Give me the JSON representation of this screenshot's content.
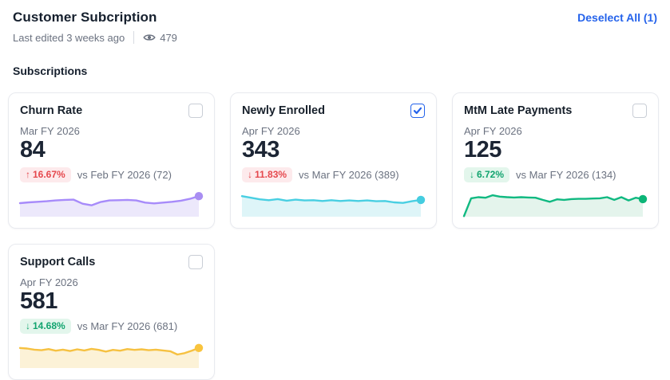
{
  "header": {
    "title": "Customer Subcription",
    "last_edited": "Last edited 3 weeks ago",
    "views_count": "479",
    "deselect_label": "Deselect All (1)"
  },
  "section": {
    "title": "Subscriptions"
  },
  "colors": {
    "link_blue": "#2563eb",
    "badge_negative_text": "#e5484d",
    "badge_negative_bg": "#fdeaec",
    "badge_positive_text": "#12a46f",
    "badge_positive_bg": "#e3f6ec",
    "text_muted": "#6b7280",
    "text_dark": "#1c2534",
    "card_border": "#e8eaef"
  },
  "cards": [
    {
      "title": "Churn Rate",
      "period": "Mar FY 2026",
      "value": "84",
      "checked": false,
      "delta": {
        "arrow": "↑",
        "text": "16.67%",
        "tone": "negative"
      },
      "comparison": "vs Feb FY 2026 (72)",
      "spark": {
        "color": "#a78bfa",
        "fill": "#ece8fb",
        "dot": "#a98ef2",
        "values": [
          50,
          53,
          55,
          57,
          60,
          62,
          63,
          48,
          42,
          54,
          60,
          61,
          62,
          60,
          52,
          49,
          52,
          55,
          59,
          66,
          76
        ]
      }
    },
    {
      "title": "Newly Enrolled",
      "period": "Apr FY 2026",
      "value": "343",
      "checked": true,
      "delta": {
        "arrow": "↓",
        "text": "11.83%",
        "tone": "negative"
      },
      "comparison": "vs Mar FY 2026 (389)",
      "spark": {
        "color": "#49cfe2",
        "fill": "#def5f8",
        "dot": "#45cde0",
        "values": [
          76,
          70,
          64,
          61,
          65,
          59,
          63,
          60,
          61,
          58,
          61,
          58,
          60,
          58,
          60,
          57,
          58,
          53,
          51,
          57,
          62
        ]
      }
    },
    {
      "title": "MtM Late Payments",
      "period": "Apr FY 2026",
      "value": "125",
      "checked": false,
      "delta": {
        "arrow": "↓",
        "text": "6.72%",
        "tone": "positive"
      },
      "comparison": "vs Mar FY 2026 (134)",
      "spark": {
        "color": "#10b981",
        "fill": "#e4f4ec",
        "dot": "#0cb577",
        "values": [
          2,
          68,
          72,
          70,
          79,
          74,
          72,
          71,
          72,
          71,
          70,
          62,
          55,
          64,
          62,
          65,
          66,
          66,
          67,
          68,
          72,
          62,
          72,
          60,
          70,
          65
        ]
      }
    },
    {
      "title": "Support Calls",
      "period": "Apr FY 2026",
      "value": "581",
      "checked": false,
      "delta": {
        "arrow": "↓",
        "text": "14.68%",
        "tone": "positive"
      },
      "comparison": "vs Mar FY 2026 (681)",
      "spark": {
        "color": "#f6c141",
        "fill": "#fcf2d7",
        "dot": "#f9c43e",
        "values": [
          74,
          72,
          68,
          66,
          70,
          64,
          68,
          63,
          69,
          65,
          71,
          67,
          61,
          67,
          64,
          70,
          67,
          69,
          66,
          68,
          65,
          62,
          50,
          55,
          64,
          74
        ]
      }
    }
  ]
}
